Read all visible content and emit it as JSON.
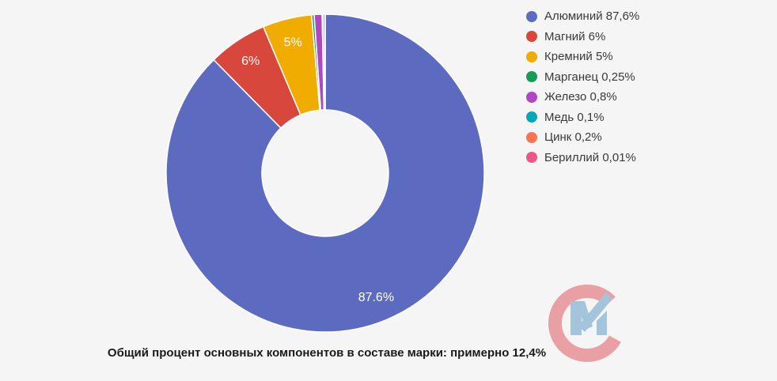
{
  "page": {
    "background_color": "#f5f5f5"
  },
  "chart_data": {
    "type": "pie",
    "subtype": "donut",
    "donut_hole_ratio": 0.4,
    "start_angle_deg": 0,
    "direction": "clockwise",
    "legend_position": "right",
    "caption": "Общий процент основных компонентов в составе марки: примерно 12,4%",
    "slices": [
      {
        "name": "Алюминий",
        "value": 87.6,
        "legend_label": "Алюминий 87,6%",
        "slice_label": "87.6%",
        "color": "#5C6BC0"
      },
      {
        "name": "Магний",
        "value": 6,
        "legend_label": "Магний 6%",
        "slice_label": "6%",
        "color": "#D8473C"
      },
      {
        "name": "Кремний",
        "value": 5,
        "legend_label": "Кремний 5%",
        "slice_label": "5%",
        "color": "#F0AC00"
      },
      {
        "name": "Марганец",
        "value": 0.25,
        "legend_label": "Марганец 0,25%",
        "slice_label": null,
        "color": "#199B58"
      },
      {
        "name": "Железо",
        "value": 0.8,
        "legend_label": "Железо 0,8%",
        "slice_label": null,
        "color": "#AE48C2"
      },
      {
        "name": "Медь",
        "value": 0.1,
        "legend_label": "Медь 0,1%",
        "slice_label": null,
        "color": "#00A8B8"
      },
      {
        "name": "Цинк",
        "value": 0.2,
        "legend_label": "Цинк 0,2%",
        "slice_label": null,
        "color": "#FA7352"
      },
      {
        "name": "Бериллий",
        "value": 0.01,
        "legend_label": "Бериллий 0,01%",
        "slice_label": null,
        "color": "#EF5687"
      }
    ]
  },
  "watermark": {
    "icon": "cm-checkmark-logo",
    "c_color": "#E9A0A4",
    "m_color": "#A3C4DA"
  }
}
